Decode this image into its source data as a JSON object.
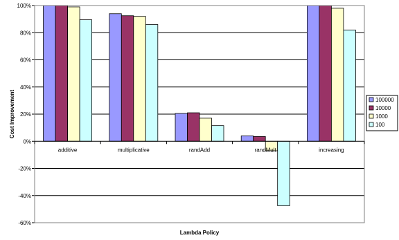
{
  "chart_data": {
    "type": "bar",
    "title": "",
    "xlabel": "Lambda Policy",
    "ylabel": "Cost Improvement",
    "categories": [
      "additive",
      "multiplicative",
      "randAdd",
      "randMult",
      "increasing"
    ],
    "series": [
      {
        "name": "100000",
        "color": "#9999ff",
        "values": [
          100,
          94,
          20.5,
          4,
          100
        ]
      },
      {
        "name": "10000",
        "color": "#993366",
        "values": [
          100,
          92.5,
          21,
          3.5,
          100
        ]
      },
      {
        "name": "1000",
        "color": "#ffffcc",
        "values": [
          99,
          92,
          17,
          -7,
          98
        ]
      },
      {
        "name": "100",
        "color": "#ccffff",
        "values": [
          89.5,
          86,
          11.5,
          -47.5,
          82
        ]
      }
    ],
    "ylim": [
      -60,
      100
    ],
    "yticks": [
      -60,
      -40,
      -20,
      0,
      20,
      40,
      60,
      80,
      100
    ],
    "ytick_labels": [
      "-60%",
      "-40%",
      "-20%",
      "0%",
      "20%",
      "40%",
      "60%",
      "80%",
      "100%"
    ],
    "grid": true,
    "legend_position": "right"
  }
}
